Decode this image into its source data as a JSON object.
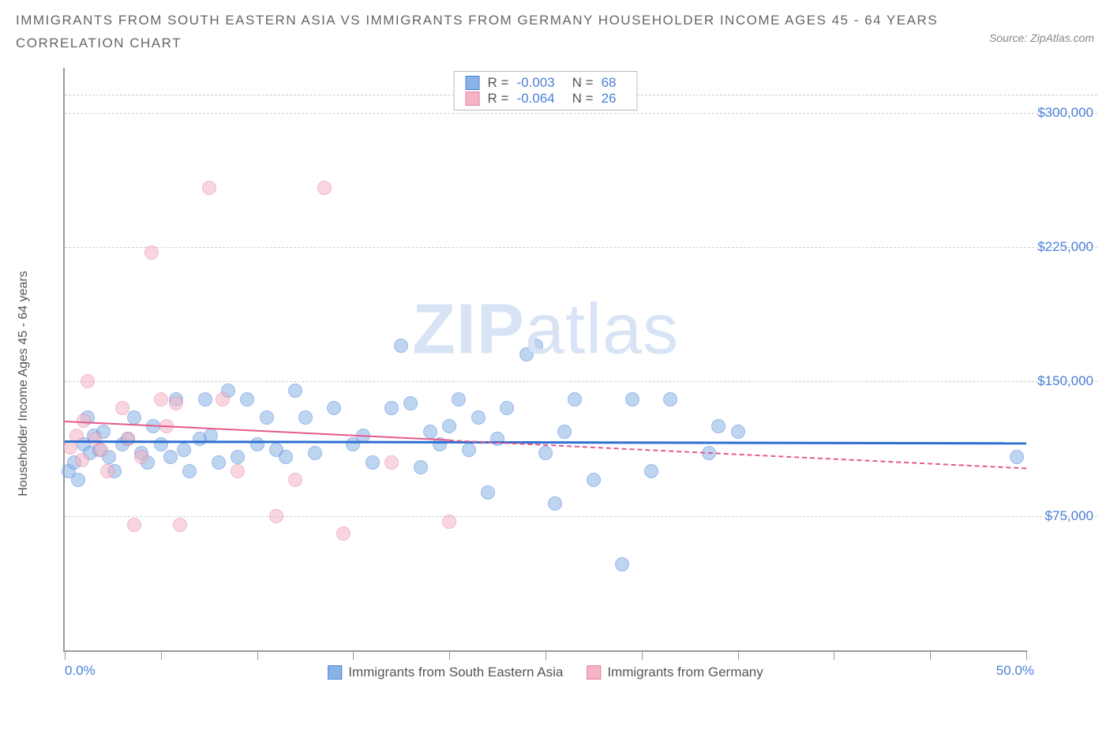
{
  "title_line1": "IMMIGRANTS FROM SOUTH EASTERN ASIA VS IMMIGRANTS FROM GERMANY HOUSEHOLDER INCOME AGES 45 - 64 YEARS",
  "title_line2": "CORRELATION CHART",
  "source": "Source: ZipAtlas.com",
  "watermark_bold": "ZIP",
  "watermark_light": "atlas",
  "y_axis_label": "Householder Income Ages 45 - 64 years",
  "x_min_label": "0.0%",
  "x_max_label": "50.0%",
  "chart": {
    "type": "scatter",
    "xlim": [
      0,
      50
    ],
    "ylim": [
      0,
      325000
    ],
    "x_ticks": [
      0,
      5,
      10,
      15,
      20,
      25,
      30,
      35,
      40,
      45,
      50
    ],
    "y_ticks": [
      75000,
      150000,
      225000,
      300000
    ],
    "y_tick_labels": [
      "$75,000",
      "$150,000",
      "$225,000",
      "$300,000"
    ],
    "background_color": "#ffffff",
    "grid_color": "#d0d0d0",
    "axis_color": "#999999",
    "tick_label_color": "#4a7fd8",
    "point_radius": 9,
    "point_opacity": 0.55,
    "series": [
      {
        "name": "Immigrants from South Eastern Asia",
        "fill_color": "#89b3e6",
        "stroke_color": "#4a7fd8",
        "R": "-0.003",
        "N": "68",
        "trend": {
          "x1": 0,
          "y1": 117000,
          "x2": 50,
          "y2": 116000,
          "solid_until_x": 50,
          "color": "#2e6fd0",
          "width": 3
        },
        "points": [
          [
            0.2,
            100000
          ],
          [
            0.5,
            105000
          ],
          [
            0.7,
            95000
          ],
          [
            1.0,
            115000
          ],
          [
            1.3,
            110000
          ],
          [
            1.5,
            120000
          ],
          [
            1.2,
            130000
          ],
          [
            1.8,
            112000
          ],
          [
            2.0,
            122000
          ],
          [
            2.3,
            108000
          ],
          [
            2.6,
            100000
          ],
          [
            3.0,
            115000
          ],
          [
            3.3,
            118000
          ],
          [
            3.6,
            130000
          ],
          [
            4.0,
            110000
          ],
          [
            4.3,
            105000
          ],
          [
            4.6,
            125000
          ],
          [
            5.0,
            115000
          ],
          [
            5.5,
            108000
          ],
          [
            5.8,
            140000
          ],
          [
            6.2,
            112000
          ],
          [
            6.5,
            100000
          ],
          [
            7.0,
            118000
          ],
          [
            7.3,
            140000
          ],
          [
            7.6,
            120000
          ],
          [
            8.0,
            105000
          ],
          [
            8.5,
            145000
          ],
          [
            9.0,
            108000
          ],
          [
            9.5,
            140000
          ],
          [
            10.0,
            115000
          ],
          [
            10.5,
            130000
          ],
          [
            11.0,
            112000
          ],
          [
            11.5,
            108000
          ],
          [
            12.0,
            145000
          ],
          [
            12.5,
            130000
          ],
          [
            13.0,
            110000
          ],
          [
            14.0,
            135000
          ],
          [
            15.0,
            115000
          ],
          [
            15.5,
            120000
          ],
          [
            16.0,
            105000
          ],
          [
            17.0,
            135000
          ],
          [
            17.5,
            170000
          ],
          [
            18.0,
            138000
          ],
          [
            18.5,
            102000
          ],
          [
            19.0,
            122000
          ],
          [
            19.5,
            115000
          ],
          [
            20.0,
            125000
          ],
          [
            20.5,
            140000
          ],
          [
            21.0,
            112000
          ],
          [
            21.5,
            130000
          ],
          [
            22.0,
            88000
          ],
          [
            22.5,
            118000
          ],
          [
            23.0,
            135000
          ],
          [
            24.0,
            165000
          ],
          [
            24.5,
            170000
          ],
          [
            25.0,
            110000
          ],
          [
            25.5,
            82000
          ],
          [
            26.0,
            122000
          ],
          [
            26.5,
            140000
          ],
          [
            27.5,
            95000
          ],
          [
            29.0,
            48000
          ],
          [
            29.5,
            140000
          ],
          [
            30.5,
            100000
          ],
          [
            31.5,
            140000
          ],
          [
            33.5,
            110000
          ],
          [
            34.0,
            125000
          ],
          [
            35.0,
            122000
          ],
          [
            49.5,
            108000
          ]
        ]
      },
      {
        "name": "Immigrants from Germany",
        "fill_color": "#f5b5c5",
        "stroke_color": "#e87fa0",
        "R": "-0.064",
        "N": "26",
        "trend": {
          "x1": 0,
          "y1": 128000,
          "x2": 50,
          "y2": 102000,
          "solid_until_x": 20,
          "color": "#e65a8a",
          "width": 2
        },
        "points": [
          [
            0.3,
            113000
          ],
          [
            0.6,
            120000
          ],
          [
            0.9,
            106000
          ],
          [
            1.0,
            128000
          ],
          [
            1.2,
            150000
          ],
          [
            1.6,
            118000
          ],
          [
            1.9,
            112000
          ],
          [
            2.2,
            100000
          ],
          [
            3.0,
            135000
          ],
          [
            3.3,
            118000
          ],
          [
            3.6,
            70000
          ],
          [
            4.0,
            108000
          ],
          [
            4.5,
            222000
          ],
          [
            5.0,
            140000
          ],
          [
            5.3,
            125000
          ],
          [
            5.8,
            138000
          ],
          [
            6.0,
            70000
          ],
          [
            7.5,
            258000
          ],
          [
            8.2,
            140000
          ],
          [
            9.0,
            100000
          ],
          [
            11.0,
            75000
          ],
          [
            12.0,
            95000
          ],
          [
            13.5,
            258000
          ],
          [
            14.5,
            65000
          ],
          [
            17.0,
            105000
          ],
          [
            20.0,
            72000
          ]
        ]
      }
    ]
  },
  "top_legend": {
    "r_label": "R =",
    "n_label": "N ="
  }
}
